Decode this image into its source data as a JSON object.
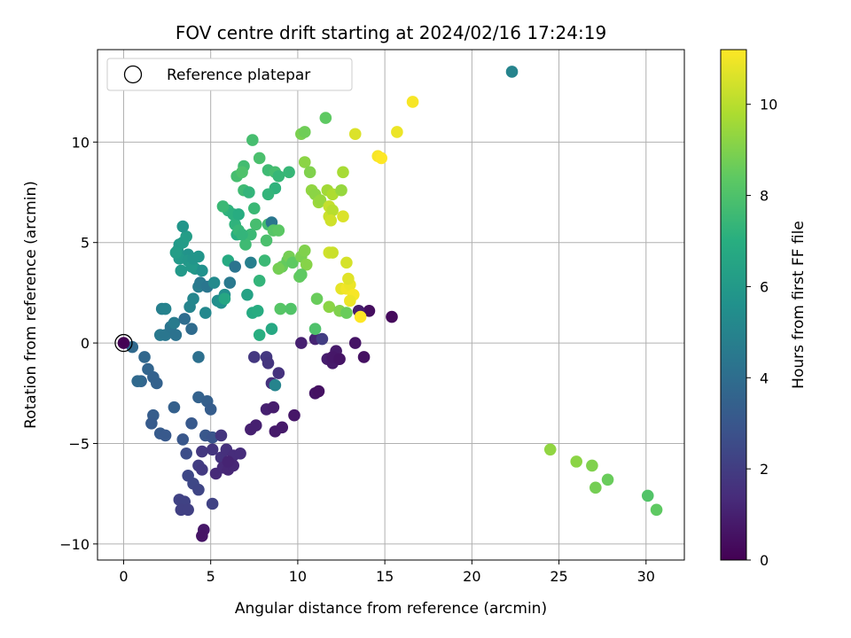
{
  "chart_data": {
    "type": "scatter",
    "title": "FOV centre drift starting at 2024/02/16 17:24:19",
    "xlabel": "Angular distance from reference (arcmin)",
    "ylabel": "Rotation from reference (arcmin)",
    "xlim": [
      -1.5,
      32.2
    ],
    "ylim": [
      -10.8,
      14.6
    ],
    "xticks": [
      0,
      5,
      10,
      15,
      20,
      25,
      30
    ],
    "yticks": [
      -10,
      -5,
      0,
      5,
      10
    ],
    "grid": true,
    "legend": {
      "location": "top-left",
      "entries": [
        "Reference platepar"
      ]
    },
    "reference_point": {
      "x": 0,
      "y": 0,
      "label": "Reference platepar"
    },
    "colorbar": {
      "label": "Hours from first FF file",
      "colormap": "viridis",
      "range": [
        0,
        11.2
      ],
      "ticks": [
        0,
        2,
        4,
        6,
        8,
        10
      ]
    },
    "points": [
      {
        "x": 0.5,
        "y": -0.2,
        "h": 3.8
      },
      {
        "x": 1.2,
        "y": -0.7,
        "h": 3.7
      },
      {
        "x": 1.0,
        "y": -1.9,
        "h": 3.6
      },
      {
        "x": 1.4,
        "y": -1.3,
        "h": 3.6
      },
      {
        "x": 1.7,
        "y": -1.7,
        "h": 3.5
      },
      {
        "x": 1.9,
        "y": -2.0,
        "h": 3.5
      },
      {
        "x": 1.7,
        "y": -3.6,
        "h": 3.3
      },
      {
        "x": 1.6,
        "y": -4.0,
        "h": 3.2
      },
      {
        "x": 2.1,
        "y": -4.5,
        "h": 3.2
      },
      {
        "x": 2.4,
        "y": -4.6,
        "h": 3.1
      },
      {
        "x": 2.9,
        "y": -3.2,
        "h": 3.4
      },
      {
        "x": 3.4,
        "y": -4.8,
        "h": 3.0
      },
      {
        "x": 3.9,
        "y": -4.0,
        "h": 3.1
      },
      {
        "x": 4.3,
        "y": -2.7,
        "h": 3.5
      },
      {
        "x": 4.8,
        "y": -2.9,
        "h": 3.4
      },
      {
        "x": 5.0,
        "y": -3.3,
        "h": 3.3
      },
      {
        "x": 4.7,
        "y": -4.6,
        "h": 3.0
      },
      {
        "x": 5.1,
        "y": -4.7,
        "h": 2.9
      },
      {
        "x": 4.3,
        "y": -0.7,
        "h": 4.1
      },
      {
        "x": 3.6,
        "y": -5.5,
        "h": 2.6
      },
      {
        "x": 3.7,
        "y": -6.6,
        "h": 2.4
      },
      {
        "x": 4.0,
        "y": -7.0,
        "h": 2.4
      },
      {
        "x": 4.3,
        "y": -7.3,
        "h": 2.3
      },
      {
        "x": 3.2,
        "y": -7.8,
        "h": 2.2
      },
      {
        "x": 3.5,
        "y": -7.9,
        "h": 2.2
      },
      {
        "x": 3.3,
        "y": -8.3,
        "h": 2.1
      },
      {
        "x": 3.7,
        "y": -8.3,
        "h": 2.1
      },
      {
        "x": 5.1,
        "y": -8.0,
        "h": 2.2
      },
      {
        "x": 4.3,
        "y": -6.1,
        "h": 2.0
      },
      {
        "x": 4.5,
        "y": -6.3,
        "h": 1.9
      },
      {
        "x": 4.5,
        "y": -5.4,
        "h": 1.8
      },
      {
        "x": 5.1,
        "y": -5.3,
        "h": 1.7
      },
      {
        "x": 5.6,
        "y": -4.6,
        "h": 1.7
      },
      {
        "x": 5.6,
        "y": -5.7,
        "h": 1.6
      },
      {
        "x": 5.9,
        "y": -5.3,
        "h": 1.5
      },
      {
        "x": 6.1,
        "y": -6.0,
        "h": 1.5
      },
      {
        "x": 6.3,
        "y": -5.6,
        "h": 1.4
      },
      {
        "x": 6.7,
        "y": -5.5,
        "h": 1.4
      },
      {
        "x": 5.3,
        "y": -6.5,
        "h": 1.3
      },
      {
        "x": 5.7,
        "y": -6.2,
        "h": 1.3
      },
      {
        "x": 6.0,
        "y": -6.3,
        "h": 1.2
      },
      {
        "x": 6.3,
        "y": -6.1,
        "h": 1.2
      },
      {
        "x": 6.0,
        "y": -5.9,
        "h": 1.1
      },
      {
        "x": 4.6,
        "y": -9.3,
        "h": 0.7
      },
      {
        "x": 4.5,
        "y": -9.6,
        "h": 0.6
      },
      {
        "x": 7.3,
        "y": -4.3,
        "h": 1.0
      },
      {
        "x": 7.6,
        "y": -4.1,
        "h": 1.0
      },
      {
        "x": 8.2,
        "y": -3.3,
        "h": 1.0
      },
      {
        "x": 8.6,
        "y": -3.2,
        "h": 0.9
      },
      {
        "x": 8.7,
        "y": -4.4,
        "h": 0.8
      },
      {
        "x": 9.1,
        "y": -4.2,
        "h": 0.8
      },
      {
        "x": 9.8,
        "y": -3.6,
        "h": 0.7
      },
      {
        "x": 7.5,
        "y": -0.7,
        "h": 1.8
      },
      {
        "x": 8.2,
        "y": -0.7,
        "h": 1.8
      },
      {
        "x": 8.3,
        "y": -1.0,
        "h": 1.7
      },
      {
        "x": 8.5,
        "y": -2.0,
        "h": 1.6
      },
      {
        "x": 8.9,
        "y": -1.5,
        "h": 1.6
      },
      {
        "x": 8.7,
        "y": -2.1,
        "h": 5.0
      },
      {
        "x": 10.2,
        "y": 0.0,
        "h": 1.0
      },
      {
        "x": 11.0,
        "y": 0.2,
        "h": 1.1
      },
      {
        "x": 11.4,
        "y": 0.2,
        "h": 2.0
      },
      {
        "x": 11.7,
        "y": -0.8,
        "h": 0.9
      },
      {
        "x": 12.0,
        "y": -1.0,
        "h": 0.8
      },
      {
        "x": 12.2,
        "y": -0.4,
        "h": 0.8
      },
      {
        "x": 12.0,
        "y": -0.7,
        "h": 0.7
      },
      {
        "x": 12.4,
        "y": -0.8,
        "h": 0.6
      },
      {
        "x": 11.0,
        "y": -2.5,
        "h": 0.6
      },
      {
        "x": 11.2,
        "y": -2.4,
        "h": 0.5
      },
      {
        "x": 13.3,
        "y": 0.0,
        "h": 0.6
      },
      {
        "x": 13.8,
        "y": -0.7,
        "h": 0.5
      },
      {
        "x": 14.1,
        "y": 1.6,
        "h": 0.4
      },
      {
        "x": 15.4,
        "y": 1.3,
        "h": 0.3
      },
      {
        "x": 13.5,
        "y": 1.6,
        "h": 0.9
      },
      {
        "x": 0.8,
        "y": -1.9,
        "h": 3.8
      },
      {
        "x": 2.1,
        "y": 0.4,
        "h": 4.5
      },
      {
        "x": 2.4,
        "y": 0.4,
        "h": 4.4
      },
      {
        "x": 2.7,
        "y": 0.8,
        "h": 4.3
      },
      {
        "x": 2.9,
        "y": 1.0,
        "h": 4.6
      },
      {
        "x": 3.0,
        "y": 0.4,
        "h": 4.2
      },
      {
        "x": 3.5,
        "y": 1.2,
        "h": 4.0
      },
      {
        "x": 3.9,
        "y": 0.7,
        "h": 3.9
      },
      {
        "x": 2.2,
        "y": 1.7,
        "h": 4.8
      },
      {
        "x": 2.4,
        "y": 1.7,
        "h": 4.9
      },
      {
        "x": 3.8,
        "y": 1.8,
        "h": 5.0
      },
      {
        "x": 4.0,
        "y": 2.2,
        "h": 5.1
      },
      {
        "x": 4.3,
        "y": 2.8,
        "h": 4.7
      },
      {
        "x": 4.4,
        "y": 3.0,
        "h": 4.5
      },
      {
        "x": 4.8,
        "y": 2.8,
        "h": 4.4
      },
      {
        "x": 4.7,
        "y": 1.5,
        "h": 5.2
      },
      {
        "x": 5.4,
        "y": 2.1,
        "h": 5.4
      },
      {
        "x": 5.2,
        "y": 3.0,
        "h": 5.3
      },
      {
        "x": 5.6,
        "y": 2.0,
        "h": 5.6
      },
      {
        "x": 5.8,
        "y": 2.4,
        "h": 5.5
      },
      {
        "x": 6.1,
        "y": 3.0,
        "h": 4.5
      },
      {
        "x": 4.1,
        "y": 3.7,
        "h": 5.9
      },
      {
        "x": 4.3,
        "y": 4.3,
        "h": 5.8
      },
      {
        "x": 4.5,
        "y": 3.6,
        "h": 5.6
      },
      {
        "x": 3.7,
        "y": 4.4,
        "h": 5.7
      },
      {
        "x": 3.3,
        "y": 3.6,
        "h": 6.0
      },
      {
        "x": 3.1,
        "y": 4.6,
        "h": 5.9
      },
      {
        "x": 3.2,
        "y": 4.9,
        "h": 6.0
      },
      {
        "x": 3.4,
        "y": 5.0,
        "h": 6.1
      },
      {
        "x": 3.6,
        "y": 5.3,
        "h": 6.2
      },
      {
        "x": 3.4,
        "y": 5.8,
        "h": 5.8
      },
      {
        "x": 3.2,
        "y": 4.2,
        "h": 6.0
      },
      {
        "x": 3.0,
        "y": 4.5,
        "h": 6.2
      },
      {
        "x": 3.7,
        "y": 4.1,
        "h": 5.9
      },
      {
        "x": 3.9,
        "y": 3.8,
        "h": 6.0
      },
      {
        "x": 4.0,
        "y": 4.2,
        "h": 5.8
      },
      {
        "x": 5.8,
        "y": 2.2,
        "h": 6.6
      },
      {
        "x": 6.0,
        "y": 4.1,
        "h": 6.8
      },
      {
        "x": 6.4,
        "y": 3.8,
        "h": 4.3
      },
      {
        "x": 7.1,
        "y": 2.4,
        "h": 6.4
      },
      {
        "x": 7.3,
        "y": 4.0,
        "h": 4.8
      },
      {
        "x": 7.4,
        "y": 1.5,
        "h": 6.8
      },
      {
        "x": 7.7,
        "y": 1.6,
        "h": 6.9
      },
      {
        "x": 7.8,
        "y": 0.4,
        "h": 7.0
      },
      {
        "x": 8.5,
        "y": 0.7,
        "h": 6.7
      },
      {
        "x": 7.8,
        "y": 3.1,
        "h": 7.3
      },
      {
        "x": 8.1,
        "y": 4.1,
        "h": 7.5
      },
      {
        "x": 7.3,
        "y": 5.4,
        "h": 7.5
      },
      {
        "x": 7.0,
        "y": 4.9,
        "h": 7.6
      },
      {
        "x": 7.6,
        "y": 5.9,
        "h": 7.8
      },
      {
        "x": 8.3,
        "y": 5.9,
        "h": 7.7
      },
      {
        "x": 8.5,
        "y": 6.0,
        "h": 4.4
      },
      {
        "x": 8.2,
        "y": 5.1,
        "h": 7.9
      },
      {
        "x": 8.6,
        "y": 5.6,
        "h": 8.2
      },
      {
        "x": 8.9,
        "y": 5.6,
        "h": 8.3
      },
      {
        "x": 6.4,
        "y": 5.9,
        "h": 7.2
      },
      {
        "x": 6.5,
        "y": 5.4,
        "h": 7.0
      },
      {
        "x": 6.6,
        "y": 5.6,
        "h": 7.4
      },
      {
        "x": 6.8,
        "y": 5.4,
        "h": 7.3
      },
      {
        "x": 6.0,
        "y": 6.6,
        "h": 7.2
      },
      {
        "x": 6.3,
        "y": 6.4,
        "h": 7.1
      },
      {
        "x": 6.6,
        "y": 6.4,
        "h": 6.9
      },
      {
        "x": 5.7,
        "y": 6.8,
        "h": 7.5
      },
      {
        "x": 6.5,
        "y": 8.3,
        "h": 7.8
      },
      {
        "x": 6.9,
        "y": 8.8,
        "h": 7.7
      },
      {
        "x": 6.8,
        "y": 8.5,
        "h": 8.0
      },
      {
        "x": 6.9,
        "y": 7.6,
        "h": 7.6
      },
      {
        "x": 7.2,
        "y": 7.5,
        "h": 7.3
      },
      {
        "x": 7.5,
        "y": 6.7,
        "h": 7.5
      },
      {
        "x": 7.8,
        "y": 9.2,
        "h": 7.9
      },
      {
        "x": 7.4,
        "y": 10.1,
        "h": 7.8
      },
      {
        "x": 8.3,
        "y": 8.6,
        "h": 7.6
      },
      {
        "x": 8.7,
        "y": 8.5,
        "h": 7.8
      },
      {
        "x": 8.9,
        "y": 8.3,
        "h": 7.4
      },
      {
        "x": 8.7,
        "y": 7.7,
        "h": 7.2
      },
      {
        "x": 9.5,
        "y": 8.5,
        "h": 7.4
      },
      {
        "x": 8.3,
        "y": 7.4,
        "h": 7.3
      },
      {
        "x": 9.1,
        "y": 3.8,
        "h": 8.6
      },
      {
        "x": 9.4,
        "y": 4.1,
        "h": 8.5
      },
      {
        "x": 9.5,
        "y": 4.3,
        "h": 8.8
      },
      {
        "x": 9.7,
        "y": 4.0,
        "h": 8.4
      },
      {
        "x": 8.9,
        "y": 3.7,
        "h": 8.8
      },
      {
        "x": 9.0,
        "y": 1.7,
        "h": 8.2
      },
      {
        "x": 9.6,
        "y": 1.7,
        "h": 8.1
      },
      {
        "x": 10.1,
        "y": 3.3,
        "h": 8.5
      },
      {
        "x": 10.2,
        "y": 4.3,
        "h": 8.9
      },
      {
        "x": 10.4,
        "y": 4.6,
        "h": 9.0
      },
      {
        "x": 10.5,
        "y": 3.9,
        "h": 9.1
      },
      {
        "x": 10.2,
        "y": 3.4,
        "h": 8.4
      },
      {
        "x": 11.1,
        "y": 2.2,
        "h": 8.6
      },
      {
        "x": 11.0,
        "y": 0.7,
        "h": 8.0
      },
      {
        "x": 11.8,
        "y": 1.8,
        "h": 9.2
      },
      {
        "x": 12.4,
        "y": 1.6,
        "h": 9.0
      },
      {
        "x": 12.8,
        "y": 1.5,
        "h": 8.6
      },
      {
        "x": 10.2,
        "y": 10.4,
        "h": 8.9
      },
      {
        "x": 10.4,
        "y": 10.5,
        "h": 8.7
      },
      {
        "x": 11.6,
        "y": 11.2,
        "h": 8.4
      },
      {
        "x": 10.4,
        "y": 9.0,
        "h": 9.2
      },
      {
        "x": 10.7,
        "y": 8.5,
        "h": 9.0
      },
      {
        "x": 10.8,
        "y": 7.6,
        "h": 9.3
      },
      {
        "x": 11.0,
        "y": 7.4,
        "h": 9.2
      },
      {
        "x": 11.2,
        "y": 7.0,
        "h": 9.5
      },
      {
        "x": 11.3,
        "y": 7.1,
        "h": 9.4
      },
      {
        "x": 11.7,
        "y": 7.6,
        "h": 9.6
      },
      {
        "x": 12.0,
        "y": 7.4,
        "h": 9.8
      },
      {
        "x": 12.5,
        "y": 7.6,
        "h": 9.4
      },
      {
        "x": 12.6,
        "y": 8.5,
        "h": 9.7
      },
      {
        "x": 11.8,
        "y": 6.8,
        "h": 10.2
      },
      {
        "x": 11.8,
        "y": 6.3,
        "h": 10.3
      },
      {
        "x": 12.0,
        "y": 6.6,
        "h": 10.0
      },
      {
        "x": 11.9,
        "y": 6.1,
        "h": 10.4
      },
      {
        "x": 12.6,
        "y": 6.3,
        "h": 10.6
      },
      {
        "x": 11.8,
        "y": 4.5,
        "h": 10.4
      },
      {
        "x": 12.0,
        "y": 4.5,
        "h": 10.3
      },
      {
        "x": 12.8,
        "y": 4.0,
        "h": 10.5
      },
      {
        "x": 12.5,
        "y": 2.7,
        "h": 10.8
      },
      {
        "x": 12.8,
        "y": 2.7,
        "h": 11.0
      },
      {
        "x": 13.0,
        "y": 2.9,
        "h": 10.9
      },
      {
        "x": 12.9,
        "y": 3.2,
        "h": 10.7
      },
      {
        "x": 13.2,
        "y": 2.4,
        "h": 11.1
      },
      {
        "x": 13.0,
        "y": 2.1,
        "h": 10.9
      },
      {
        "x": 13.6,
        "y": 1.3,
        "h": 11.2
      },
      {
        "x": 13.3,
        "y": 10.4,
        "h": 10.6
      },
      {
        "x": 14.6,
        "y": 9.3,
        "h": 11.1
      },
      {
        "x": 14.8,
        "y": 9.2,
        "h": 11.2
      },
      {
        "x": 15.7,
        "y": 10.5,
        "h": 10.9
      },
      {
        "x": 16.6,
        "y": 12.0,
        "h": 11.1
      },
      {
        "x": 22.3,
        "y": 13.5,
        "h": 5.0
      },
      {
        "x": 24.5,
        "y": -5.3,
        "h": 9.3
      },
      {
        "x": 26.0,
        "y": -5.9,
        "h": 9.2
      },
      {
        "x": 26.9,
        "y": -6.1,
        "h": 9.0
      },
      {
        "x": 27.1,
        "y": -7.2,
        "h": 8.8
      },
      {
        "x": 27.8,
        "y": -6.8,
        "h": 8.6
      },
      {
        "x": 30.1,
        "y": -7.6,
        "h": 8.1
      },
      {
        "x": 30.6,
        "y": -8.3,
        "h": 8.4
      }
    ]
  }
}
